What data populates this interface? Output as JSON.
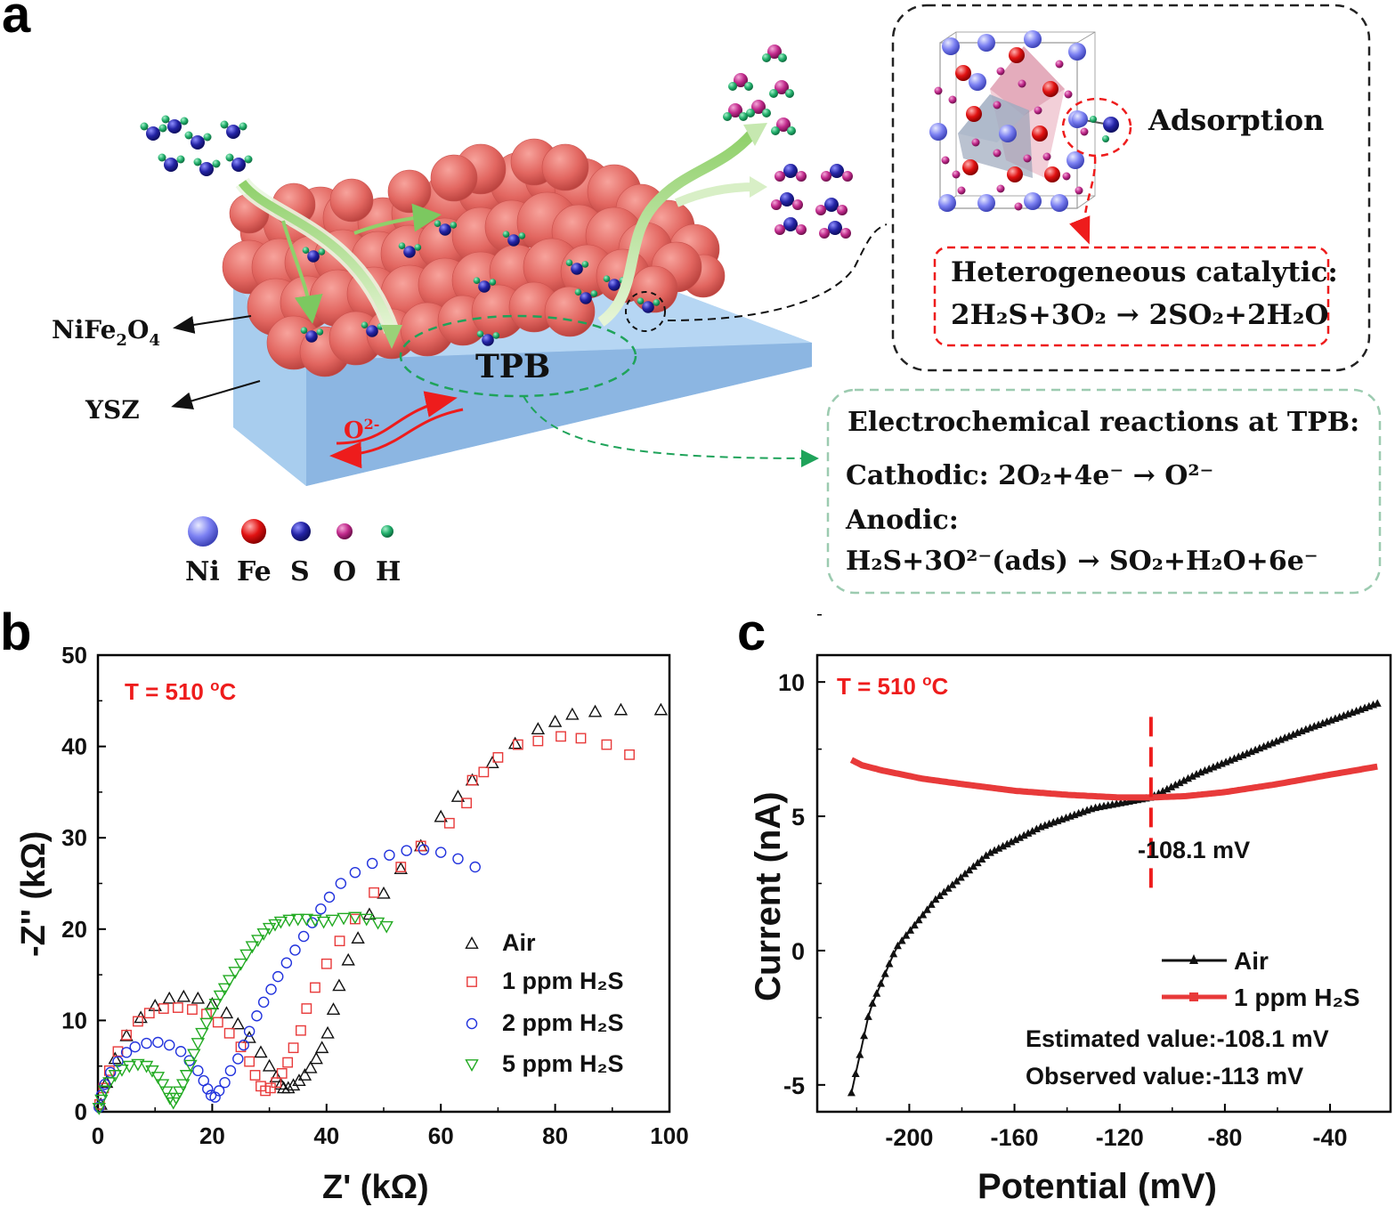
{
  "colors": {
    "ni": "#6f76f0",
    "fe": "#e01515",
    "s": "#2a2aa8",
    "o": "#c42a8e",
    "h": "#1fb36e",
    "air": "#111111",
    "h2s_1": "#e83a3a",
    "h2s_2": "#2233dd",
    "h2s_5": "#22aa22",
    "annotation_red": "#ee1c1c",
    "ysz": "#9ec6ec",
    "nife2o4": "#e86a66"
  },
  "panel_a": {
    "label": "a",
    "label_nife2o4": "NiFe",
    "label_nife2o4_sub1": "2",
    "label_nife2o4_o": "O",
    "label_nife2o4_sub2": "4",
    "label_ysz": "YSZ",
    "label_tpb": "TPB",
    "label_o2": "O",
    "label_o2_sup": "2-",
    "adsorption": "Adsorption",
    "hetero_title": "Heterogeneous catalytic:",
    "hetero_eq": "2H₂S+3O₂ → 2SO₂+2H₂O",
    "electro_title": "Electrochemical reactions at TPB:",
    "cathodic": "Cathodic: 2O₂+4e⁻  →  O²⁻",
    "anodic_label": "Anodic:",
    "anodic_eq": "H₂S+3O²⁻(ads)  →  SO₂+H₂O+6e⁻",
    "legend": [
      "Ni",
      "Fe",
      "S",
      "O",
      "H"
    ]
  },
  "panel_b": {
    "label": "b",
    "temp": "T = 510 ",
    "temp_sup": "o",
    "temp_unit": "C",
    "xlabel": "Z' (kΩ)",
    "ylabel": "-Z'' (kΩ)",
    "legend": [
      "Air",
      "1 ppm H₂S",
      "2 ppm H₂S",
      "5 ppm H₂S"
    ]
  },
  "panel_c": {
    "label": "c",
    "temp": "T = 510 ",
    "temp_sup": "o",
    "temp_unit": "C",
    "xlabel": "Potential (mV)",
    "ylabel": "Current (nA)",
    "legend": [
      "Air",
      "1 ppm H₂S"
    ],
    "annotation": "-108.1 mV",
    "estimated": "Estimated value:-108.1 mV",
    "observed": "Observed value:-113 mV"
  },
  "chart_data": [
    {
      "type": "scatter",
      "panel": "b",
      "xlabel": "Z' (kΩ)",
      "ylabel": "-Z'' (kΩ)",
      "xlim": [
        0,
        100
      ],
      "ylim": [
        0,
        50
      ],
      "xticks": [
        0,
        20,
        40,
        60,
        80,
        100
      ],
      "yticks": [
        0,
        10,
        20,
        30,
        40,
        50
      ],
      "series": [
        {
          "name": "Air",
          "marker": "triangle-up",
          "points": [
            [
              0.5,
              0.8
            ],
            [
              1.5,
              3.2
            ],
            [
              3,
              5.8
            ],
            [
              5,
              8.3
            ],
            [
              7.5,
              10.3
            ],
            [
              10,
              11.6
            ],
            [
              12.5,
              12.4
            ],
            [
              15,
              12.6
            ],
            [
              17.5,
              12.4
            ],
            [
              20,
              11.8
            ],
            [
              22.5,
              10.8
            ],
            [
              24.5,
              9.6
            ],
            [
              26.5,
              8.1
            ],
            [
              28.5,
              6.5
            ],
            [
              30,
              5
            ],
            [
              31.2,
              3.8
            ],
            [
              32,
              3
            ],
            [
              32.5,
              2.6
            ],
            [
              33.3,
              2.6
            ],
            [
              34.2,
              2.9
            ],
            [
              35.2,
              3.4
            ],
            [
              36.2,
              4
            ],
            [
              37.2,
              4.8
            ],
            [
              38.2,
              5.8
            ],
            [
              39.2,
              7
            ],
            [
              40.2,
              8.6
            ],
            [
              41.2,
              11.2
            ],
            [
              42.2,
              13.8
            ],
            [
              43.8,
              16.6
            ],
            [
              45.5,
              19
            ],
            [
              47.5,
              21.6
            ],
            [
              50,
              23.9
            ],
            [
              53,
              26.6
            ],
            [
              56.5,
              29.1
            ],
            [
              60,
              32.3
            ],
            [
              63,
              34.5
            ],
            [
              65.5,
              36.3
            ],
            [
              69,
              38.2
            ],
            [
              73,
              40.3
            ],
            [
              77,
              41.9
            ],
            [
              80,
              42.7
            ],
            [
              83,
              43.5
            ],
            [
              87,
              43.8
            ],
            [
              91.5,
              44
            ],
            [
              98.5,
              44
            ]
          ]
        },
        {
          "name": "1 ppm H₂S",
          "marker": "square",
          "points": [
            [
              0.3,
              0.8
            ],
            [
              1,
              2.6
            ],
            [
              2,
              4.5
            ],
            [
              3.5,
              6.6
            ],
            [
              5,
              8.4
            ],
            [
              7,
              9.9
            ],
            [
              9,
              10.8
            ],
            [
              11.5,
              11.3
            ],
            [
              14,
              11.4
            ],
            [
              16.5,
              11.2
            ],
            [
              19,
              10.7
            ],
            [
              21,
              9.8
            ],
            [
              23,
              8.6
            ],
            [
              25,
              7.1
            ],
            [
              26.5,
              5.5
            ],
            [
              27.5,
              4
            ],
            [
              28.5,
              2.8
            ],
            [
              29.3,
              2.3
            ],
            [
              30.2,
              2.6
            ],
            [
              31.2,
              3.2
            ],
            [
              32.2,
              4.2
            ],
            [
              33.2,
              5.4
            ],
            [
              34.2,
              7
            ],
            [
              35.5,
              8.9
            ],
            [
              36.5,
              11.3
            ],
            [
              38,
              13.6
            ],
            [
              40,
              16.2
            ],
            [
              42.3,
              18.7
            ],
            [
              45,
              21.1
            ],
            [
              48.3,
              24
            ],
            [
              53,
              26.8
            ],
            [
              56.5,
              29.1
            ],
            [
              61.5,
              31.6
            ],
            [
              64.5,
              33.8
            ],
            [
              65.5,
              36.3
            ],
            [
              67.5,
              37.2
            ],
            [
              70,
              38.8
            ],
            [
              73.5,
              40.2
            ],
            [
              77,
              40.6
            ],
            [
              81,
              41.1
            ],
            [
              84.5,
              40.9
            ],
            [
              89,
              40.2
            ],
            [
              93,
              39.1
            ]
          ]
        },
        {
          "name": "2 ppm H₂S",
          "marker": "circle",
          "points": [
            [
              0.2,
              0.5
            ],
            [
              0.6,
              1.8
            ],
            [
              1.2,
              3
            ],
            [
              2.2,
              4.3
            ],
            [
              3.5,
              5.5
            ],
            [
              5,
              6.5
            ],
            [
              6.5,
              7.1
            ],
            [
              8.5,
              7.5
            ],
            [
              10.5,
              7.6
            ],
            [
              12.5,
              7.3
            ],
            [
              14.5,
              6.6
            ],
            [
              16,
              5.6
            ],
            [
              17.5,
              4.5
            ],
            [
              18.5,
              3.4
            ],
            [
              19.2,
              2.5
            ],
            [
              19.8,
              1.8
            ],
            [
              20.5,
              1.6
            ],
            [
              21.2,
              2.3
            ],
            [
              22.2,
              3.2
            ],
            [
              23.2,
              4.5
            ],
            [
              24.5,
              5.8
            ],
            [
              25.5,
              7.3
            ],
            [
              26.5,
              8.8
            ],
            [
              27.8,
              10.5
            ],
            [
              29,
              12
            ],
            [
              30.3,
              13.4
            ],
            [
              31.5,
              14.8
            ],
            [
              33,
              16.3
            ],
            [
              34.5,
              17.7
            ],
            [
              36,
              19.2
            ],
            [
              37.5,
              20.7
            ],
            [
              39,
              22.2
            ],
            [
              40.5,
              23.5
            ],
            [
              42.5,
              25
            ],
            [
              45,
              26.2
            ],
            [
              48,
              27.2
            ],
            [
              51,
              28.1
            ],
            [
              54,
              28.6
            ],
            [
              57,
              28.7
            ],
            [
              60,
              28.4
            ],
            [
              63,
              27.7
            ],
            [
              66,
              26.8
            ]
          ]
        },
        {
          "name": "5 ppm H₂S",
          "marker": "triangle-down",
          "points": [
            [
              0.2,
              0.4
            ],
            [
              0.6,
              1.3
            ],
            [
              1.2,
              2.3
            ],
            [
              2,
              3.2
            ],
            [
              3,
              4
            ],
            [
              4.2,
              4.6
            ],
            [
              5.5,
              5
            ],
            [
              7,
              5.2
            ],
            [
              8.5,
              5
            ],
            [
              9.5,
              4.5
            ],
            [
              10.5,
              3.8
            ],
            [
              11.3,
              3
            ],
            [
              12,
              2.2
            ],
            [
              12.6,
              1.5
            ],
            [
              13.2,
              1
            ],
            [
              13.7,
              1.5
            ],
            [
              14.3,
              2.2
            ],
            [
              14.9,
              3
            ],
            [
              15.5,
              4
            ],
            [
              16.2,
              5.1
            ],
            [
              16.8,
              6.3
            ],
            [
              17.5,
              7.5
            ],
            [
              18.2,
              8.6
            ],
            [
              19,
              9.7
            ],
            [
              19.8,
              10.8
            ],
            [
              20.6,
              11.8
            ],
            [
              21.4,
              12.7
            ],
            [
              22.2,
              13.5
            ],
            [
              23,
              14.4
            ],
            [
              24,
              15.3
            ],
            [
              25,
              16.2
            ],
            [
              26,
              17.2
            ],
            [
              27,
              18.1
            ],
            [
              28,
              18.8
            ],
            [
              29,
              19.5
            ],
            [
              30,
              20.1
            ],
            [
              31,
              20.5
            ],
            [
              32,
              20.8
            ],
            [
              33.5,
              21
            ],
            [
              35,
              21.1
            ],
            [
              36.5,
              21.1
            ],
            [
              38,
              21
            ],
            [
              39.5,
              20.8
            ],
            [
              41,
              21
            ],
            [
              43,
              21.2
            ],
            [
              45,
              21.3
            ],
            [
              47,
              21.1
            ],
            [
              49,
              20.7
            ],
            [
              50.5,
              20.3
            ]
          ]
        }
      ]
    },
    {
      "type": "line",
      "panel": "c",
      "xlabel": "Potential (mV)",
      "ylabel": "Current (nA)",
      "xlim": [
        -235,
        -17
      ],
      "ylim": [
        -6,
        11
      ],
      "xticks": [
        -200,
        -160,
        -120,
        -80,
        -40
      ],
      "yticks": [
        -5,
        0,
        5,
        10
      ],
      "series": [
        {
          "name": "Air",
          "marker": "triangle-up",
          "x_range": [
            -222,
            -22
          ],
          "points": [
            [
              -222,
              -5.3
            ],
            [
              -215,
              -2.2
            ],
            [
              -205,
              0.1
            ],
            [
              -190,
              1.9
            ],
            [
              -170,
              3.6
            ],
            [
              -150,
              4.6
            ],
            [
              -130,
              5.3
            ],
            [
              -108.1,
              5.7
            ],
            [
              -90,
              6.6
            ],
            [
              -70,
              7.4
            ],
            [
              -50,
              8.2
            ],
            [
              -22,
              9.2
            ]
          ]
        },
        {
          "name": "1 ppm H₂S",
          "marker": "square",
          "x_range": [
            -222,
            -22
          ],
          "points": [
            [
              -222,
              7.1
            ],
            [
              -218,
              6.9
            ],
            [
              -210,
              6.7
            ],
            [
              -195,
              6.4
            ],
            [
              -180,
              6.2
            ],
            [
              -160,
              5.95
            ],
            [
              -140,
              5.8
            ],
            [
              -120,
              5.7
            ],
            [
              -108.1,
              5.7
            ],
            [
              -95,
              5.75
            ],
            [
              -80,
              5.9
            ],
            [
              -60,
              6.2
            ],
            [
              -40,
              6.55
            ],
            [
              -22,
              6.85
            ]
          ]
        }
      ],
      "annotation": {
        "x": -108.1,
        "text": "-108.1 mV"
      }
    }
  ]
}
